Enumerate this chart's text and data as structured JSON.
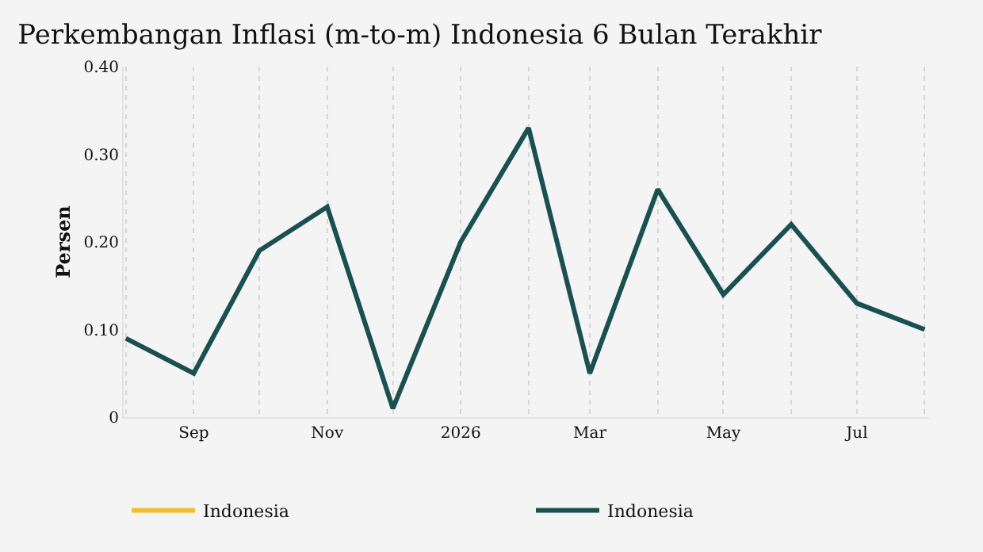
{
  "chart_data": {
    "type": "line",
    "title": "Perkembangan Inflasi (m-to-m) Indonesia 6 Bulan Terakhir",
    "ylabel": "Persen",
    "x": [
      "2025-08-01",
      "2025-09-01",
      "2025-10-01",
      "2025-11-01",
      "2025-12-01",
      "2026-01-01",
      "2026-02-01",
      "2026-03-01",
      "2026-04-01",
      "2026-05-01",
      "2026-06-01",
      "2026-07-01",
      "2026-08-01"
    ],
    "series": [
      {
        "name": "Indonesia",
        "color": "#f0bf2c",
        "values": [
          null,
          null,
          null,
          null,
          null,
          null,
          null,
          null,
          null,
          null,
          null,
          null,
          null
        ]
      },
      {
        "name": "Indonesia",
        "color": "#1b5050",
        "values": [
          0.09,
          0.05,
          0.19,
          0.24,
          0.01,
          0.2,
          0.33,
          0.05,
          0.26,
          0.14,
          0.22,
          0.13,
          0.1
        ]
      }
    ],
    "xlim": [
      "2025-07-31",
      "2026-08-03"
    ],
    "xticks": [
      {
        "value": "2025-08-01",
        "label": null
      },
      {
        "value": "2025-09-01",
        "label": "Sep"
      },
      {
        "value": "2025-10-01",
        "label": null
      },
      {
        "value": "2025-11-01",
        "label": "Nov"
      },
      {
        "value": "2025-12-01",
        "label": null
      },
      {
        "value": "2026-01-01",
        "label": "2026"
      },
      {
        "value": "2026-02-01",
        "label": null
      },
      {
        "value": "2026-03-01",
        "label": "Mar"
      },
      {
        "value": "2026-04-01",
        "label": null
      },
      {
        "value": "2026-05-01",
        "label": "May"
      },
      {
        "value": "2026-06-01",
        "label": null
      },
      {
        "value": "2026-07-01",
        "label": "Jul"
      },
      {
        "value": "2026-08-01",
        "label": null
      }
    ],
    "ylim": [
      0,
      0.4
    ],
    "yticks": [
      0,
      {
        "value": 0.1,
        "label": "0.10"
      },
      {
        "value": 0.2,
        "label": "0.20"
      },
      {
        "value": 0.3,
        "label": "0.30"
      },
      {
        "value": 0.4,
        "label": "0.40"
      }
    ],
    "grid": "x",
    "legend": "bottom",
    "marker": "none",
    "line_style": "solid"
  }
}
